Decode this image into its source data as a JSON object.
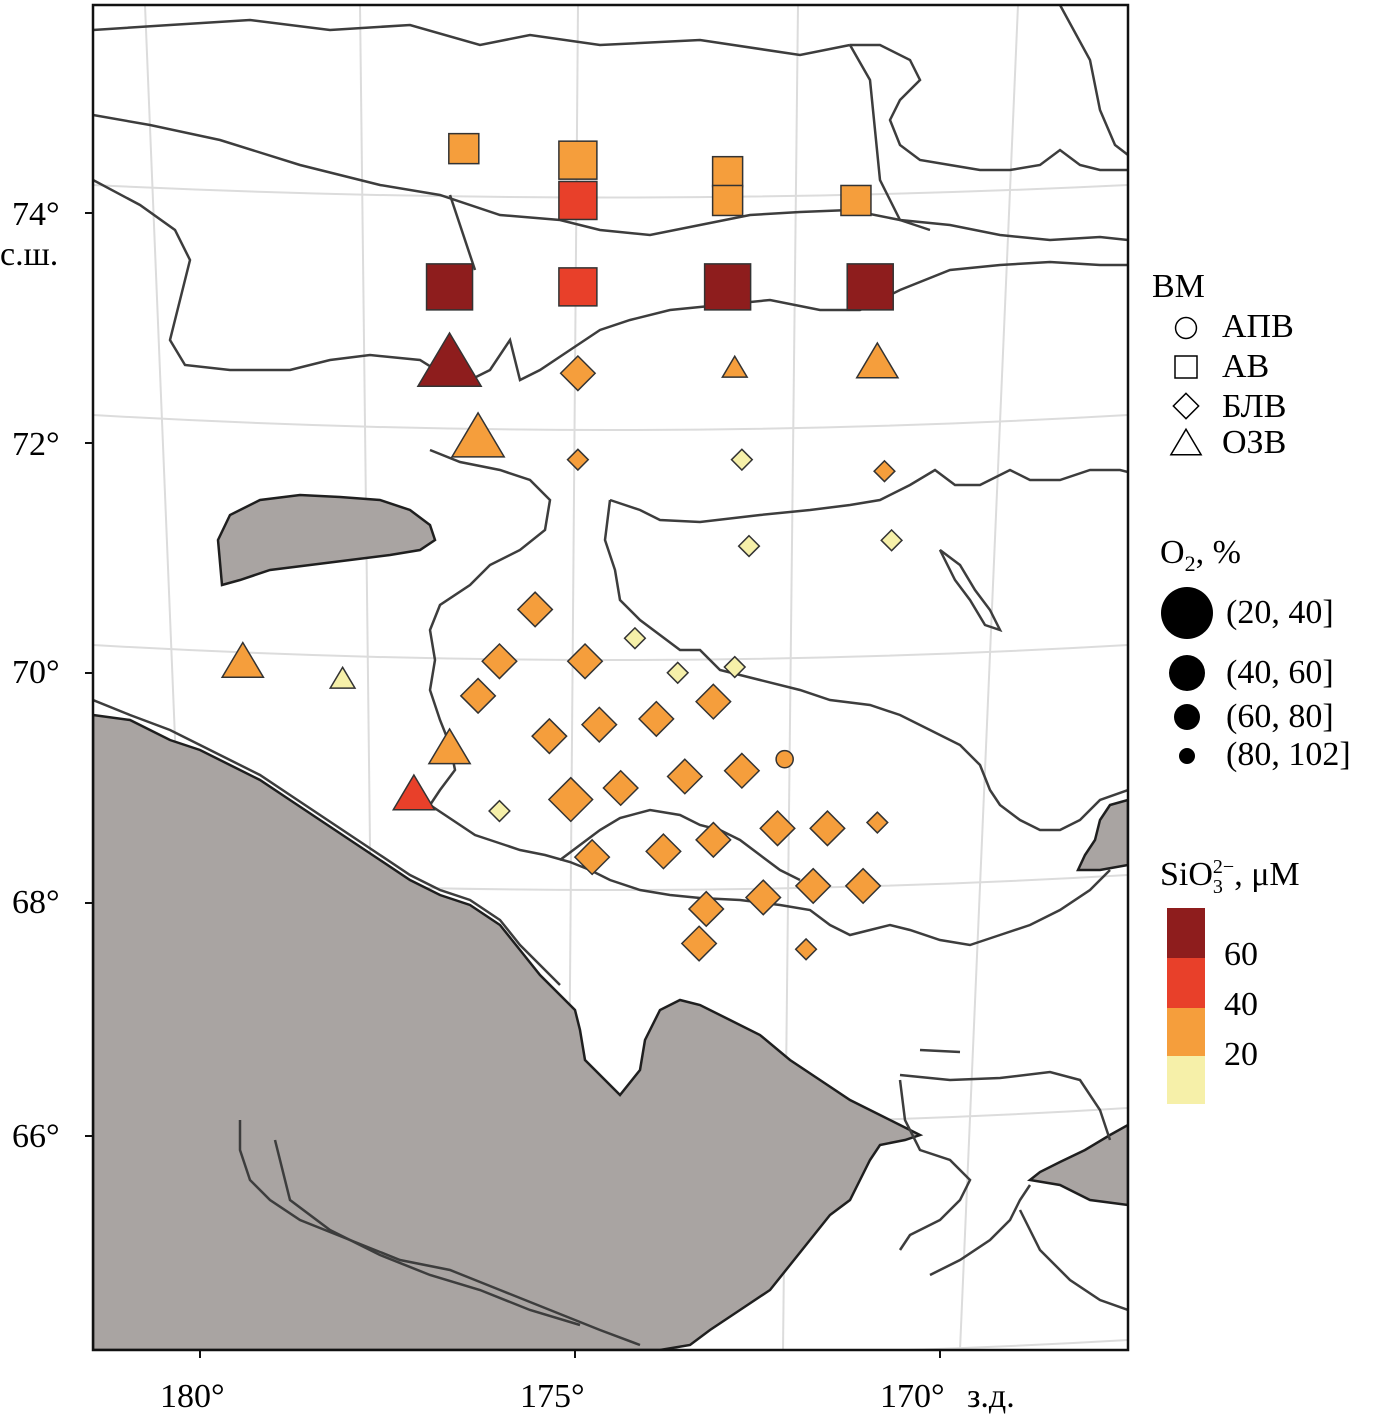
{
  "axes": {
    "lat_ticks": [
      {
        "value": 74,
        "label": "74°"
      },
      {
        "value": 72,
        "label": "72°"
      },
      {
        "value": 70,
        "label": "70°"
      },
      {
        "value": 68,
        "label": "68°"
      },
      {
        "value": 66,
        "label": "66°"
      }
    ],
    "lat_unit": "с.ш.",
    "lon_ticks": [
      {
        "value": 180,
        "label": "180°"
      },
      {
        "value": 175,
        "label": "175°"
      },
      {
        "value": 170,
        "label": "170°"
      }
    ],
    "lon_unit": "з.д."
  },
  "legend": {
    "shape_title": "ВМ",
    "shapes": [
      {
        "shape": "circle",
        "label": "АПВ"
      },
      {
        "shape": "square",
        "label": "АВ"
      },
      {
        "shape": "diamond",
        "label": "БЛВ"
      },
      {
        "shape": "triangle",
        "label": "ОЗВ"
      }
    ],
    "size_title_main": "O",
    "size_title_sub": "2",
    "size_title_rest": ", %",
    "sizes": [
      {
        "label": "(20, 40]",
        "size": 4
      },
      {
        "label": "(40, 60]",
        "size": 3
      },
      {
        "label": "(60, 80]",
        "size": 2
      },
      {
        "label": "(80, 102]",
        "size": 1
      }
    ],
    "color_title_main": "SiO",
    "color_title_sup": "2−",
    "color_title_sub": "3",
    "color_title_rest": ", μM",
    "color_ticks": [
      "60",
      "40",
      "20"
    ],
    "colors": {
      "c1": "#f6f0a9",
      "c2": "#f59e3c",
      "c3": "#e8402a",
      "c4": "#8e1d1d"
    }
  },
  "colors": {
    "land": "#a9a4a2",
    "isobath": "#3d3d3d",
    "grid": "#dcdcdc",
    "marker_edge": "#333333"
  },
  "chart_data": {
    "type": "scatter",
    "x_label": "з.д.",
    "y_label": "с.ш.",
    "stations": [
      {
        "lon": 176.3,
        "lat": 74.55,
        "shape": "square",
        "o2": 2,
        "si": "c2"
      },
      {
        "lon": 174.7,
        "lat": 74.45,
        "shape": "square",
        "o2": 3,
        "si": "c2"
      },
      {
        "lon": 174.7,
        "lat": 74.1,
        "shape": "square",
        "o2": 3,
        "si": "c3"
      },
      {
        "lon": 172.6,
        "lat": 74.35,
        "shape": "square",
        "o2": 2,
        "si": "c2"
      },
      {
        "lon": 172.6,
        "lat": 74.1,
        "shape": "square",
        "o2": 2,
        "si": "c2"
      },
      {
        "lon": 170.8,
        "lat": 74.1,
        "shape": "square",
        "o2": 2,
        "si": "c2"
      },
      {
        "lon": 176.5,
        "lat": 73.35,
        "shape": "square",
        "o2": 4,
        "si": "c4"
      },
      {
        "lon": 174.7,
        "lat": 73.35,
        "shape": "square",
        "o2": 3,
        "si": "c3"
      },
      {
        "lon": 172.6,
        "lat": 73.35,
        "shape": "square",
        "o2": 4,
        "si": "c4"
      },
      {
        "lon": 170.6,
        "lat": 73.35,
        "shape": "square",
        "o2": 4,
        "si": "c4"
      },
      {
        "lon": 176.5,
        "lat": 72.7,
        "shape": "triangle",
        "o2": 4,
        "si": "c4"
      },
      {
        "lon": 174.7,
        "lat": 72.6,
        "shape": "diamond",
        "o2": 2,
        "si": "c2"
      },
      {
        "lon": 172.5,
        "lat": 72.65,
        "shape": "triangle",
        "o2": 1,
        "si": "c2"
      },
      {
        "lon": 170.5,
        "lat": 72.7,
        "shape": "triangle",
        "o2": 2,
        "si": "c2"
      },
      {
        "lon": 176.1,
        "lat": 72.05,
        "shape": "triangle",
        "o2": 3,
        "si": "c2"
      },
      {
        "lon": 174.7,
        "lat": 71.85,
        "shape": "diamond",
        "o2": 1,
        "si": "c2"
      },
      {
        "lon": 172.4,
        "lat": 71.85,
        "shape": "diamond",
        "o2": 1,
        "si": "c1"
      },
      {
        "lon": 170.4,
        "lat": 71.75,
        "shape": "diamond",
        "o2": 1,
        "si": "c2"
      },
      {
        "lon": 172.3,
        "lat": 71.1,
        "shape": "diamond",
        "o2": 1,
        "si": "c1"
      },
      {
        "lon": 170.3,
        "lat": 71.15,
        "shape": "diamond",
        "o2": 1,
        "si": "c1"
      },
      {
        "lon": 175.3,
        "lat": 70.55,
        "shape": "diamond",
        "o2": 2,
        "si": "c2"
      },
      {
        "lon": 173.9,
        "lat": 70.3,
        "shape": "diamond",
        "o2": 1,
        "si": "c1"
      },
      {
        "lon": 175.8,
        "lat": 70.1,
        "shape": "diamond",
        "o2": 2,
        "si": "c2"
      },
      {
        "lon": 174.6,
        "lat": 70.1,
        "shape": "diamond",
        "o2": 2,
        "si": "c2"
      },
      {
        "lon": 173.3,
        "lat": 70.0,
        "shape": "diamond",
        "o2": 1,
        "si": "c1"
      },
      {
        "lon": 172.5,
        "lat": 70.05,
        "shape": "diamond",
        "o2": 1,
        "si": "c1"
      },
      {
        "lon": 179.4,
        "lat": 70.1,
        "shape": "triangle",
        "o2": 2,
        "si": "c2"
      },
      {
        "lon": 178.0,
        "lat": 69.95,
        "shape": "triangle",
        "o2": 1,
        "si": "c1"
      },
      {
        "lon": 176.1,
        "lat": 69.8,
        "shape": "diamond",
        "o2": 2,
        "si": "c2"
      },
      {
        "lon": 174.4,
        "lat": 69.55,
        "shape": "diamond",
        "o2": 2,
        "si": "c2"
      },
      {
        "lon": 173.6,
        "lat": 69.6,
        "shape": "diamond",
        "o2": 2,
        "si": "c2"
      },
      {
        "lon": 172.8,
        "lat": 69.75,
        "shape": "diamond",
        "o2": 2,
        "si": "c2"
      },
      {
        "lon": 175.1,
        "lat": 69.45,
        "shape": "diamond",
        "o2": 2,
        "si": "c2"
      },
      {
        "lon": 176.5,
        "lat": 69.35,
        "shape": "triangle",
        "o2": 2,
        "si": "c2"
      },
      {
        "lon": 171.8,
        "lat": 69.25,
        "shape": "circle",
        "o2": 1,
        "si": "c2"
      },
      {
        "lon": 172.4,
        "lat": 69.15,
        "shape": "diamond",
        "o2": 2,
        "si": "c2"
      },
      {
        "lon": 173.2,
        "lat": 69.1,
        "shape": "diamond",
        "o2": 2,
        "si": "c2"
      },
      {
        "lon": 174.1,
        "lat": 69.0,
        "shape": "diamond",
        "o2": 2,
        "si": "c2"
      },
      {
        "lon": 174.8,
        "lat": 68.9,
        "shape": "diamond",
        "o2": 3,
        "si": "c2"
      },
      {
        "lon": 177.0,
        "lat": 68.95,
        "shape": "triangle",
        "o2": 2,
        "si": "c3"
      },
      {
        "lon": 175.8,
        "lat": 68.8,
        "shape": "diamond",
        "o2": 1,
        "si": "c1"
      },
      {
        "lon": 171.9,
        "lat": 68.65,
        "shape": "diamond",
        "o2": 2,
        "si": "c2"
      },
      {
        "lon": 171.2,
        "lat": 68.65,
        "shape": "diamond",
        "o2": 2,
        "si": "c2"
      },
      {
        "lon": 170.5,
        "lat": 68.7,
        "shape": "diamond",
        "o2": 1,
        "si": "c2"
      },
      {
        "lon": 172.8,
        "lat": 68.55,
        "shape": "diamond",
        "o2": 2,
        "si": "c2"
      },
      {
        "lon": 173.5,
        "lat": 68.45,
        "shape": "diamond",
        "o2": 2,
        "si": "c2"
      },
      {
        "lon": 174.5,
        "lat": 68.4,
        "shape": "diamond",
        "o2": 2,
        "si": "c2"
      },
      {
        "lon": 171.4,
        "lat": 68.15,
        "shape": "diamond",
        "o2": 2,
        "si": "c2"
      },
      {
        "lon": 170.7,
        "lat": 68.15,
        "shape": "diamond",
        "o2": 2,
        "si": "c2"
      },
      {
        "lon": 172.1,
        "lat": 68.05,
        "shape": "diamond",
        "o2": 2,
        "si": "c2"
      },
      {
        "lon": 172.9,
        "lat": 67.95,
        "shape": "diamond",
        "o2": 2,
        "si": "c2"
      },
      {
        "lon": 173.0,
        "lat": 67.65,
        "shape": "diamond",
        "o2": 2,
        "si": "c2"
      },
      {
        "lon": 171.5,
        "lat": 67.6,
        "shape": "diamond",
        "o2": 1,
        "si": "c2"
      }
    ]
  }
}
